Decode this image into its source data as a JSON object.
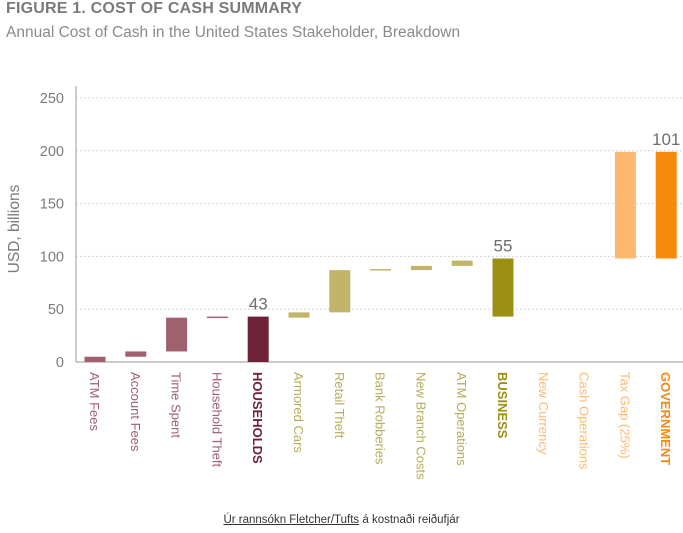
{
  "header": {
    "title": "FIGURE 1. COST OF CASH SUMMARY",
    "subtitle": "Annual Cost of Cash in the United States Stakeholder, Breakdown"
  },
  "caption": {
    "link_text": "Úr rannsókn Fletcher/Tufts",
    "rest_text": " á kostnaði reiðufjár"
  },
  "chart_data": {
    "type": "bar",
    "subtype": "waterfall",
    "title": "FIGURE 1. COST OF CASH SUMMARY",
    "subtitle": "Annual Cost of Cash in the United States Stakeholder, Breakdown",
    "xlabel": "",
    "ylabel": "USD, billions",
    "ylim": [
      0,
      250
    ],
    "yticks": [
      0,
      50,
      100,
      150,
      200,
      250
    ],
    "grid": true,
    "categories": [
      "ATM Fees",
      "Account Fees",
      "Time Spent",
      "Household Theft",
      "HOUSEHOLDS",
      "Armored Cars",
      "Retail Theft",
      "Bank Robberies",
      "New Branch Costs",
      "ATM Operations",
      "BUSINESS",
      "New Currency",
      "Cash Operations",
      "Tax Gap (25%)",
      "GOVERNMENT"
    ],
    "bars": [
      {
        "category": "ATM Fees",
        "start": 0,
        "end": 5,
        "color": "#a0606e",
        "bold": false
      },
      {
        "category": "Account Fees",
        "start": 5,
        "end": 10,
        "color": "#a0606e",
        "bold": false
      },
      {
        "category": "Time Spent",
        "start": 10,
        "end": 42,
        "color": "#a0606e",
        "bold": false
      },
      {
        "category": "Household Theft",
        "start": 42,
        "end": 43,
        "color": "#a0606e",
        "bold": false
      },
      {
        "category": "HOUSEHOLDS",
        "start": 0,
        "end": 43,
        "color": "#6e2238",
        "bold": true,
        "label": "43"
      },
      {
        "category": "Armored Cars",
        "start": 42,
        "end": 47,
        "color": "#c2b56a",
        "bold": false
      },
      {
        "category": "Retail Theft",
        "start": 47,
        "end": 87,
        "color": "#c2b56a",
        "bold": false
      },
      {
        "category": "Bank Robberies",
        "start": 87,
        "end": 88,
        "color": "#c2b56a",
        "bold": false
      },
      {
        "category": "New Branch Costs",
        "start": 87,
        "end": 91,
        "color": "#c2b56a",
        "bold": false
      },
      {
        "category": "ATM Operations",
        "start": 91,
        "end": 96,
        "color": "#c2b56a",
        "bold": false
      },
      {
        "category": "BUSINESS",
        "start": 43,
        "end": 98,
        "color": "#9b8f14",
        "bold": true,
        "label": "55"
      },
      {
        "category": "New Currency",
        "start": 98,
        "end": 98,
        "color": "#ffbf80",
        "bold": false
      },
      {
        "category": "Cash Operations",
        "start": 98,
        "end": 98,
        "color": "#ffbf80",
        "bold": false
      },
      {
        "category": "Tax Gap (25%)",
        "start": 98,
        "end": 199,
        "color": "#ffb870",
        "bold": false
      },
      {
        "category": "GOVERNMENT",
        "start": 98,
        "end": 199,
        "color": "#f58a0c",
        "bold": true,
        "label": "101"
      }
    ],
    "label_colors": {
      "households_group": "#a0606e",
      "households_total": "#6e2238",
      "business_group": "#b9ab59",
      "business_total": "#9b8f14",
      "government_group": "#ffb870",
      "government_total": "#f58a0c"
    }
  }
}
